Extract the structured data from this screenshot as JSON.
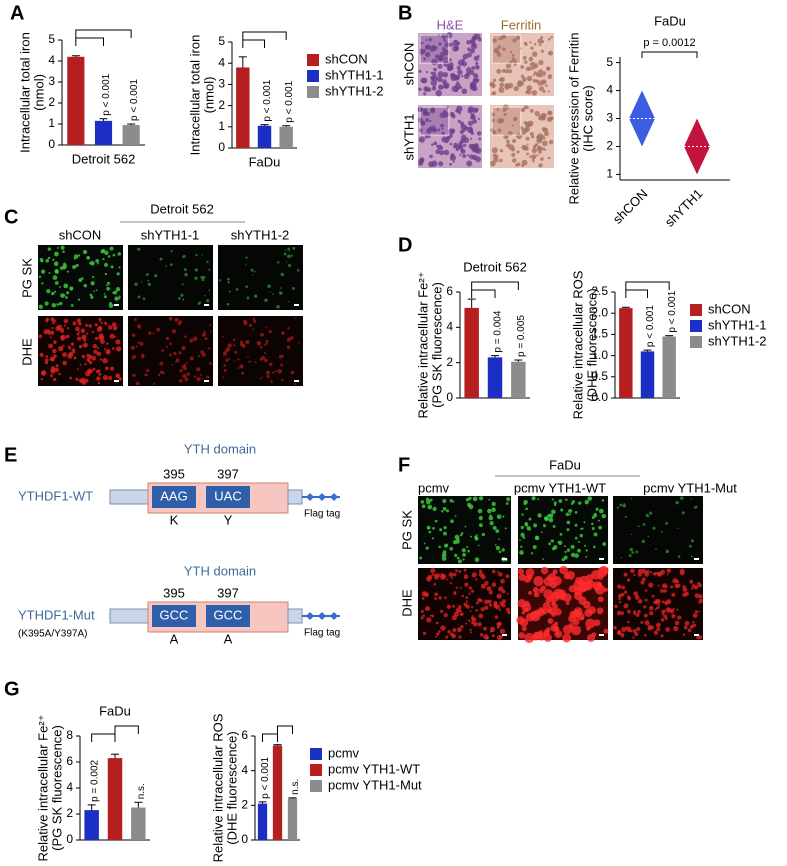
{
  "panel_labels": [
    "A",
    "B",
    "C",
    "D",
    "E",
    "F",
    "G"
  ],
  "panel_b": {
    "stains": [
      "H&E",
      "Ferritin"
    ],
    "rows": [
      "shCON",
      "shYTH1"
    ]
  },
  "panel_c": {
    "cell_line": "Detroit 562",
    "columns": [
      "shCON",
      "shYTH1-1",
      "shYTH1-2"
    ],
    "rows": [
      "PG SK",
      "DHE"
    ]
  },
  "panel_e": {
    "constructs": [
      {
        "domain": "YTH domain",
        "name": "YTHDF1-WT",
        "positions": [
          395,
          397
        ],
        "codons": [
          "AAG",
          "UAC"
        ],
        "residues": [
          "K",
          "Y"
        ],
        "tag": "Flag tag"
      },
      {
        "domain": "YTH domain",
        "name": "YTHDF1-Mut",
        "mutation": "(K395A/Y397A)",
        "positions": [
          395,
          397
        ],
        "codons": [
          "GCC",
          "GCC"
        ],
        "residues": [
          "A",
          "A"
        ],
        "tag": "Flag tag"
      }
    ]
  },
  "panel_f": {
    "cell_line": "FaDu",
    "columns": [
      "pcmv",
      "pcmv YTH1-WT",
      "pcmv YTH1-Mut"
    ],
    "rows": [
      "PG SK",
      "DHE"
    ]
  },
  "chart_data": [
    {
      "type": "bar",
      "xlabel": "Detroit 562",
      "ylabel": [
        "Intracellular total iron",
        "(nmol)"
      ],
      "categories": [
        null,
        null,
        null
      ],
      "values": [
        4.2,
        1.15,
        0.95
      ],
      "errors": [
        0.05,
        0.1,
        0.05
      ],
      "p_values": [
        null,
        "p < 0.001",
        "p < 0.001"
      ],
      "colors": [
        "#b51f1f",
        "#1c2fc4",
        "#8c8c8c"
      ],
      "ylim": [
        0,
        5
      ],
      "yticks": [
        0,
        1,
        2,
        3,
        4,
        5
      ]
    },
    {
      "type": "bar",
      "xlabel": "FaDu",
      "ylabel": [
        "Intracellular total iron",
        "(nmol)"
      ],
      "categories": [
        "shCON",
        "shYTH1-1",
        "shYTH1-2"
      ],
      "values": [
        3.8,
        1.05,
        1.0
      ],
      "errors": [
        0.5,
        0.05,
        0.05
      ],
      "p_values": [
        null,
        "p < 0.001",
        "p < 0.001"
      ],
      "colors": [
        "#b51f1f",
        "#1c2fc4",
        "#8c8c8c"
      ],
      "ylim": [
        0,
        5
      ],
      "yticks": [
        0,
        1,
        2,
        3,
        4,
        5
      ],
      "legend": "right"
    },
    {
      "type": "violin",
      "title": "FaDu",
      "ylabel": [
        "Relative expression of Ferritin",
        "(IHC score)"
      ],
      "categories": [
        "shCON",
        "shYTH1"
      ],
      "medians": [
        3,
        2
      ],
      "mins": [
        2,
        1
      ],
      "maxs": [
        4,
        3
      ],
      "p_value": "p = 0.0012",
      "colors": [
        "#3b5ee0",
        "#c2143c"
      ],
      "ylim": [
        0.8,
        5.2
      ],
      "yticks": [
        1,
        2,
        3,
        4,
        5
      ]
    },
    {
      "type": "bar",
      "title": "Detroit 562",
      "ylabel": [
        "Relative intracellular Fe²⁺",
        "(PG SK fluorescence)"
      ],
      "categories": [
        null,
        null,
        null
      ],
      "values": [
        5.1,
        2.3,
        2.05
      ],
      "errors": [
        0.5,
        0.1,
        0.1
      ],
      "p_values": [
        null,
        "p = 0.004",
        "p = 0.005"
      ],
      "colors": [
        "#b51f1f",
        "#1c2fc4",
        "#8c8c8c"
      ],
      "ylim": [
        0,
        6
      ],
      "yticks": [
        0,
        2,
        4,
        6
      ]
    },
    {
      "type": "bar",
      "ylabel": [
        "Relative intracellular ROS",
        "(DHE fluorescence)"
      ],
      "categories": [
        "shCON",
        "shYTH1-1",
        "shYTH1-2"
      ],
      "values": [
        2.12,
        1.1,
        1.45
      ],
      "errors": [
        0.02,
        0.03,
        0.02
      ],
      "p_values": [
        null,
        "p < 0.001",
        "p < 0.001"
      ],
      "colors": [
        "#b51f1f",
        "#1c2fc4",
        "#8c8c8c"
      ],
      "ylim": [
        0,
        2.5
      ],
      "yticks": [
        {
          "value": 0,
          "label": "0.0"
        },
        0.5,
        {
          "value": 1,
          "label": "1.0"
        },
        1.5,
        {
          "value": 2,
          "label": "2.0"
        },
        2.5
      ],
      "legend": "right"
    },
    {
      "type": "bar",
      "title": "FaDu",
      "ylabel": [
        "Relative intracellular Fe²⁺",
        "(PG SK fluorescence)"
      ],
      "categories": [
        null,
        null,
        null
      ],
      "values": [
        2.3,
        6.3,
        2.5
      ],
      "errors": [
        0.4,
        0.3,
        0.4
      ],
      "p_values": [
        "p = 0.002",
        null,
        "n.s."
      ],
      "colors": [
        "#1c2fc4",
        "#b51f1f",
        "#8c8c8c"
      ],
      "ylim": [
        0,
        8
      ],
      "yticks": [
        0,
        2,
        4,
        6,
        8
      ]
    },
    {
      "type": "bar",
      "ylabel": [
        "Relative intracellular ROS",
        "(DHE fluorescence)"
      ],
      "categories": [
        "pcmv",
        "pcmv YTH1-WT",
        "pcmv YTH1-Mut"
      ],
      "values": [
        2.1,
        5.45,
        2.4
      ],
      "errors": [
        0.1,
        0.05,
        0.03
      ],
      "p_values": [
        "p < 0.001",
        null,
        "n.s."
      ],
      "colors": [
        "#1c2fc4",
        "#b51f1f",
        "#8c8c8c"
      ],
      "ylim": [
        0,
        6
      ],
      "yticks": [
        0,
        2,
        4,
        6
      ],
      "legend": "right"
    }
  ]
}
